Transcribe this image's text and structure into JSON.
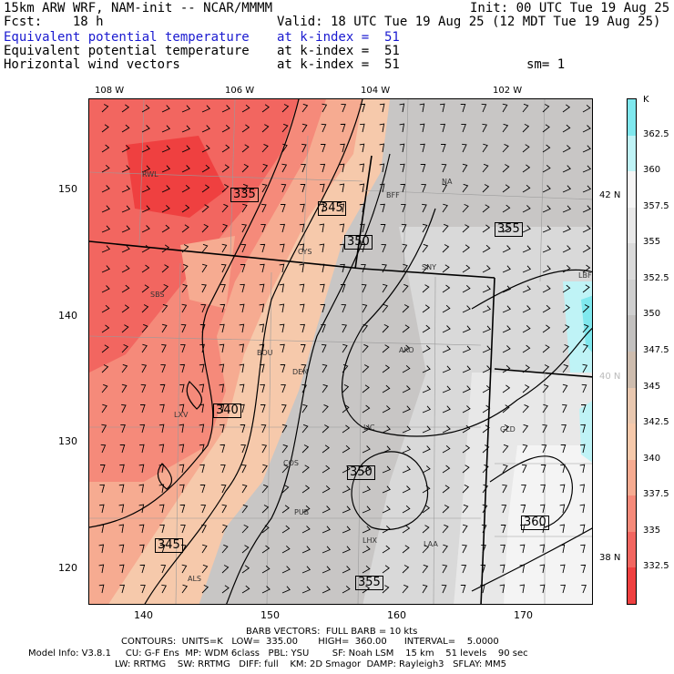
{
  "header": {
    "line1_left": "15km ARW WRF, NAM-init -- NCAR/MMMM",
    "line1_right": "Init: 00 UTC Tue 19 Aug 25",
    "line2_left": "Fcst:    18 h",
    "line2_right": "Valid: 18 UTC Tue 19 Aug 25 (12 MDT Tue 19 Aug 25)",
    "field1_name": "Equivalent potential temperature",
    "field1_level": "at k-index =  51",
    "field2_name": "Equivalent potential temperature",
    "field2_level": "at k-index =  51",
    "field3_name": "Horizontal wind vectors",
    "field3_level": "at k-index =  51",
    "smooth": "sm= 1"
  },
  "axes": {
    "top_ticks": [
      "108 W",
      "106 W",
      "104 W",
      "102 W"
    ],
    "left_ticks": [
      "150",
      "140",
      "130",
      "120"
    ],
    "bottom_ticks": [
      "140",
      "150",
      "160",
      "170"
    ],
    "right_ticks": [
      "42 N",
      "40 N",
      "38 N"
    ]
  },
  "colorbar": {
    "unit": "K",
    "labels": [
      "362.5",
      "360",
      "357.5",
      "355",
      "352.5",
      "350",
      "347.5",
      "345",
      "342.5",
      "340",
      "337.5",
      "335",
      "332.5"
    ],
    "colors": [
      "#7fe8ee",
      "#bff3f6",
      "#f5f5f5",
      "#e8e8e8",
      "#dadada",
      "#cfcfcf",
      "#c2c0bf",
      "#cdbcae",
      "#e9c8b0",
      "#f6c9ab",
      "#f6ab91",
      "#f58a7a",
      "#f26660",
      "#ef4040"
    ]
  },
  "cities": [
    {
      "name": "RWL"
    },
    {
      "name": "BFF"
    },
    {
      "name": "NA"
    },
    {
      "name": "CYS"
    },
    {
      "name": "SNY"
    },
    {
      "name": "LBF"
    },
    {
      "name": "SBS"
    },
    {
      "name": "BOU"
    },
    {
      "name": "DEN"
    },
    {
      "name": "AKO"
    },
    {
      "name": "LXV"
    },
    {
      "name": "LIC"
    },
    {
      "name": "GLD"
    },
    {
      "name": "COS"
    },
    {
      "name": "PUB"
    },
    {
      "name": "LHX"
    },
    {
      "name": "LAA"
    },
    {
      "name": "ALS"
    }
  ],
  "contour_labels": [
    "335",
    "345",
    "350",
    "355",
    "340",
    "350",
    "360",
    "345",
    "355"
  ],
  "footer": {
    "line1": "BARB VECTORS:  FULL BARB = 10 kts",
    "line2": "CONTOURS:  UNITS=K   LOW=  335.00       HIGH=  360.00      INTERVAL=    5.0000",
    "line3": "Model Info: V3.8.1     CU: G-F Ens  MP: WDM 6class   PBL: YSU        SF: Noah LSM    15 km    51 levels    90 sec",
    "line4": "LW: RRTMG    SW: RRTMG   DIFF: full    KM: 2D Smagor  DAMP: Rayleigh3   SFLAY: MM5"
  }
}
